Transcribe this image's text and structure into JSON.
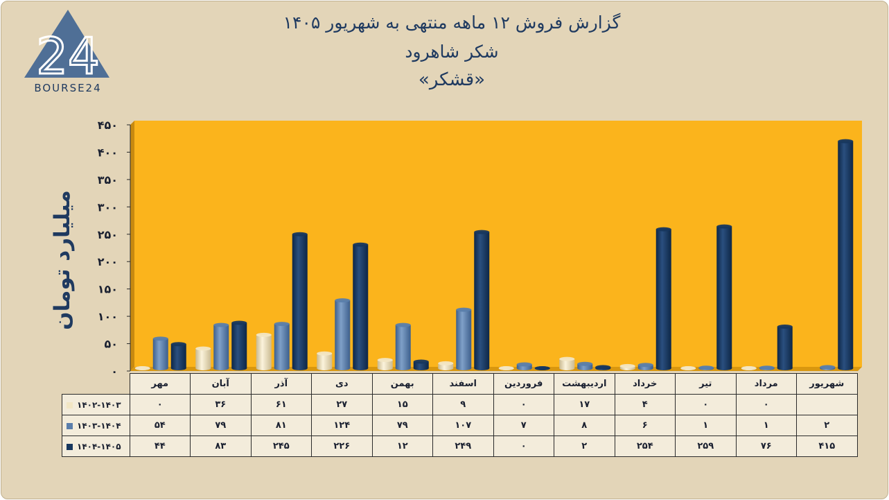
{
  "header": {
    "title_line1": "گزارش  فروش ۱۲ ماهه منتهی به شهریور ۱۴۰۵",
    "title_line2": "شکر شاهرود",
    "title_line3": "«قشکر»",
    "logo_text": "BOURSE24",
    "logo_number": "24"
  },
  "chart_data": {
    "type": "bar",
    "ylabel": "میلیارد تومان",
    "ylim": [
      0,
      450
    ],
    "yticks": [
      0,
      50,
      100,
      150,
      200,
      250,
      300,
      350,
      400,
      450
    ],
    "ytick_labels": [
      "۰",
      "۵۰",
      "۱۰۰",
      "۱۵۰",
      "۲۰۰",
      "۲۵۰",
      "۳۰۰",
      "۳۵۰",
      "۴۰۰",
      "۴۵۰"
    ],
    "categories": [
      "مهر",
      "آبان",
      "آذر",
      "دی",
      "بهمن",
      "اسفند",
      "فروردین",
      "اردیبهشت",
      "خرداد",
      "تیر",
      "مرداد",
      "شهریور"
    ],
    "series": [
      {
        "name": "۱۴۰۲-۱۴۰۳",
        "color": "#f2e6c4",
        "values": [
          0,
          36,
          61,
          27,
          15,
          9,
          0,
          17,
          4,
          0,
          0,
          null
        ],
        "labels": [
          "۰",
          "۳۶",
          "۶۱",
          "۲۷",
          "۱۵",
          "۹",
          "۰",
          "۱۷",
          "۴",
          "۰",
          "۰",
          ""
        ]
      },
      {
        "name": "۱۴۰۳-۱۴۰۴",
        "color": "#5a7eab",
        "values": [
          54,
          79,
          81,
          124,
          79,
          107,
          7,
          8,
          6,
          1,
          1,
          2
        ],
        "labels": [
          "۵۴",
          "۷۹",
          "۸۱",
          "۱۲۴",
          "۷۹",
          "۱۰۷",
          "۷",
          "۸",
          "۶",
          "۱",
          "۱",
          "۲"
        ]
      },
      {
        "name": "۱۴۰۴-۱۴۰۵",
        "color": "#17375e",
        "values": [
          44,
          83,
          245,
          226,
          12,
          249,
          0,
          2,
          254,
          259,
          76,
          415
        ],
        "labels": [
          "۴۴",
          "۸۳",
          "۲۴۵",
          "۲۲۶",
          "۱۲",
          "۲۴۹",
          "۰",
          "۲",
          "۲۵۴",
          "۲۵۹",
          "۷۶",
          "۴۱۵"
        ]
      }
    ],
    "plot_background": "#fbb41c",
    "legend": "data-table"
  }
}
